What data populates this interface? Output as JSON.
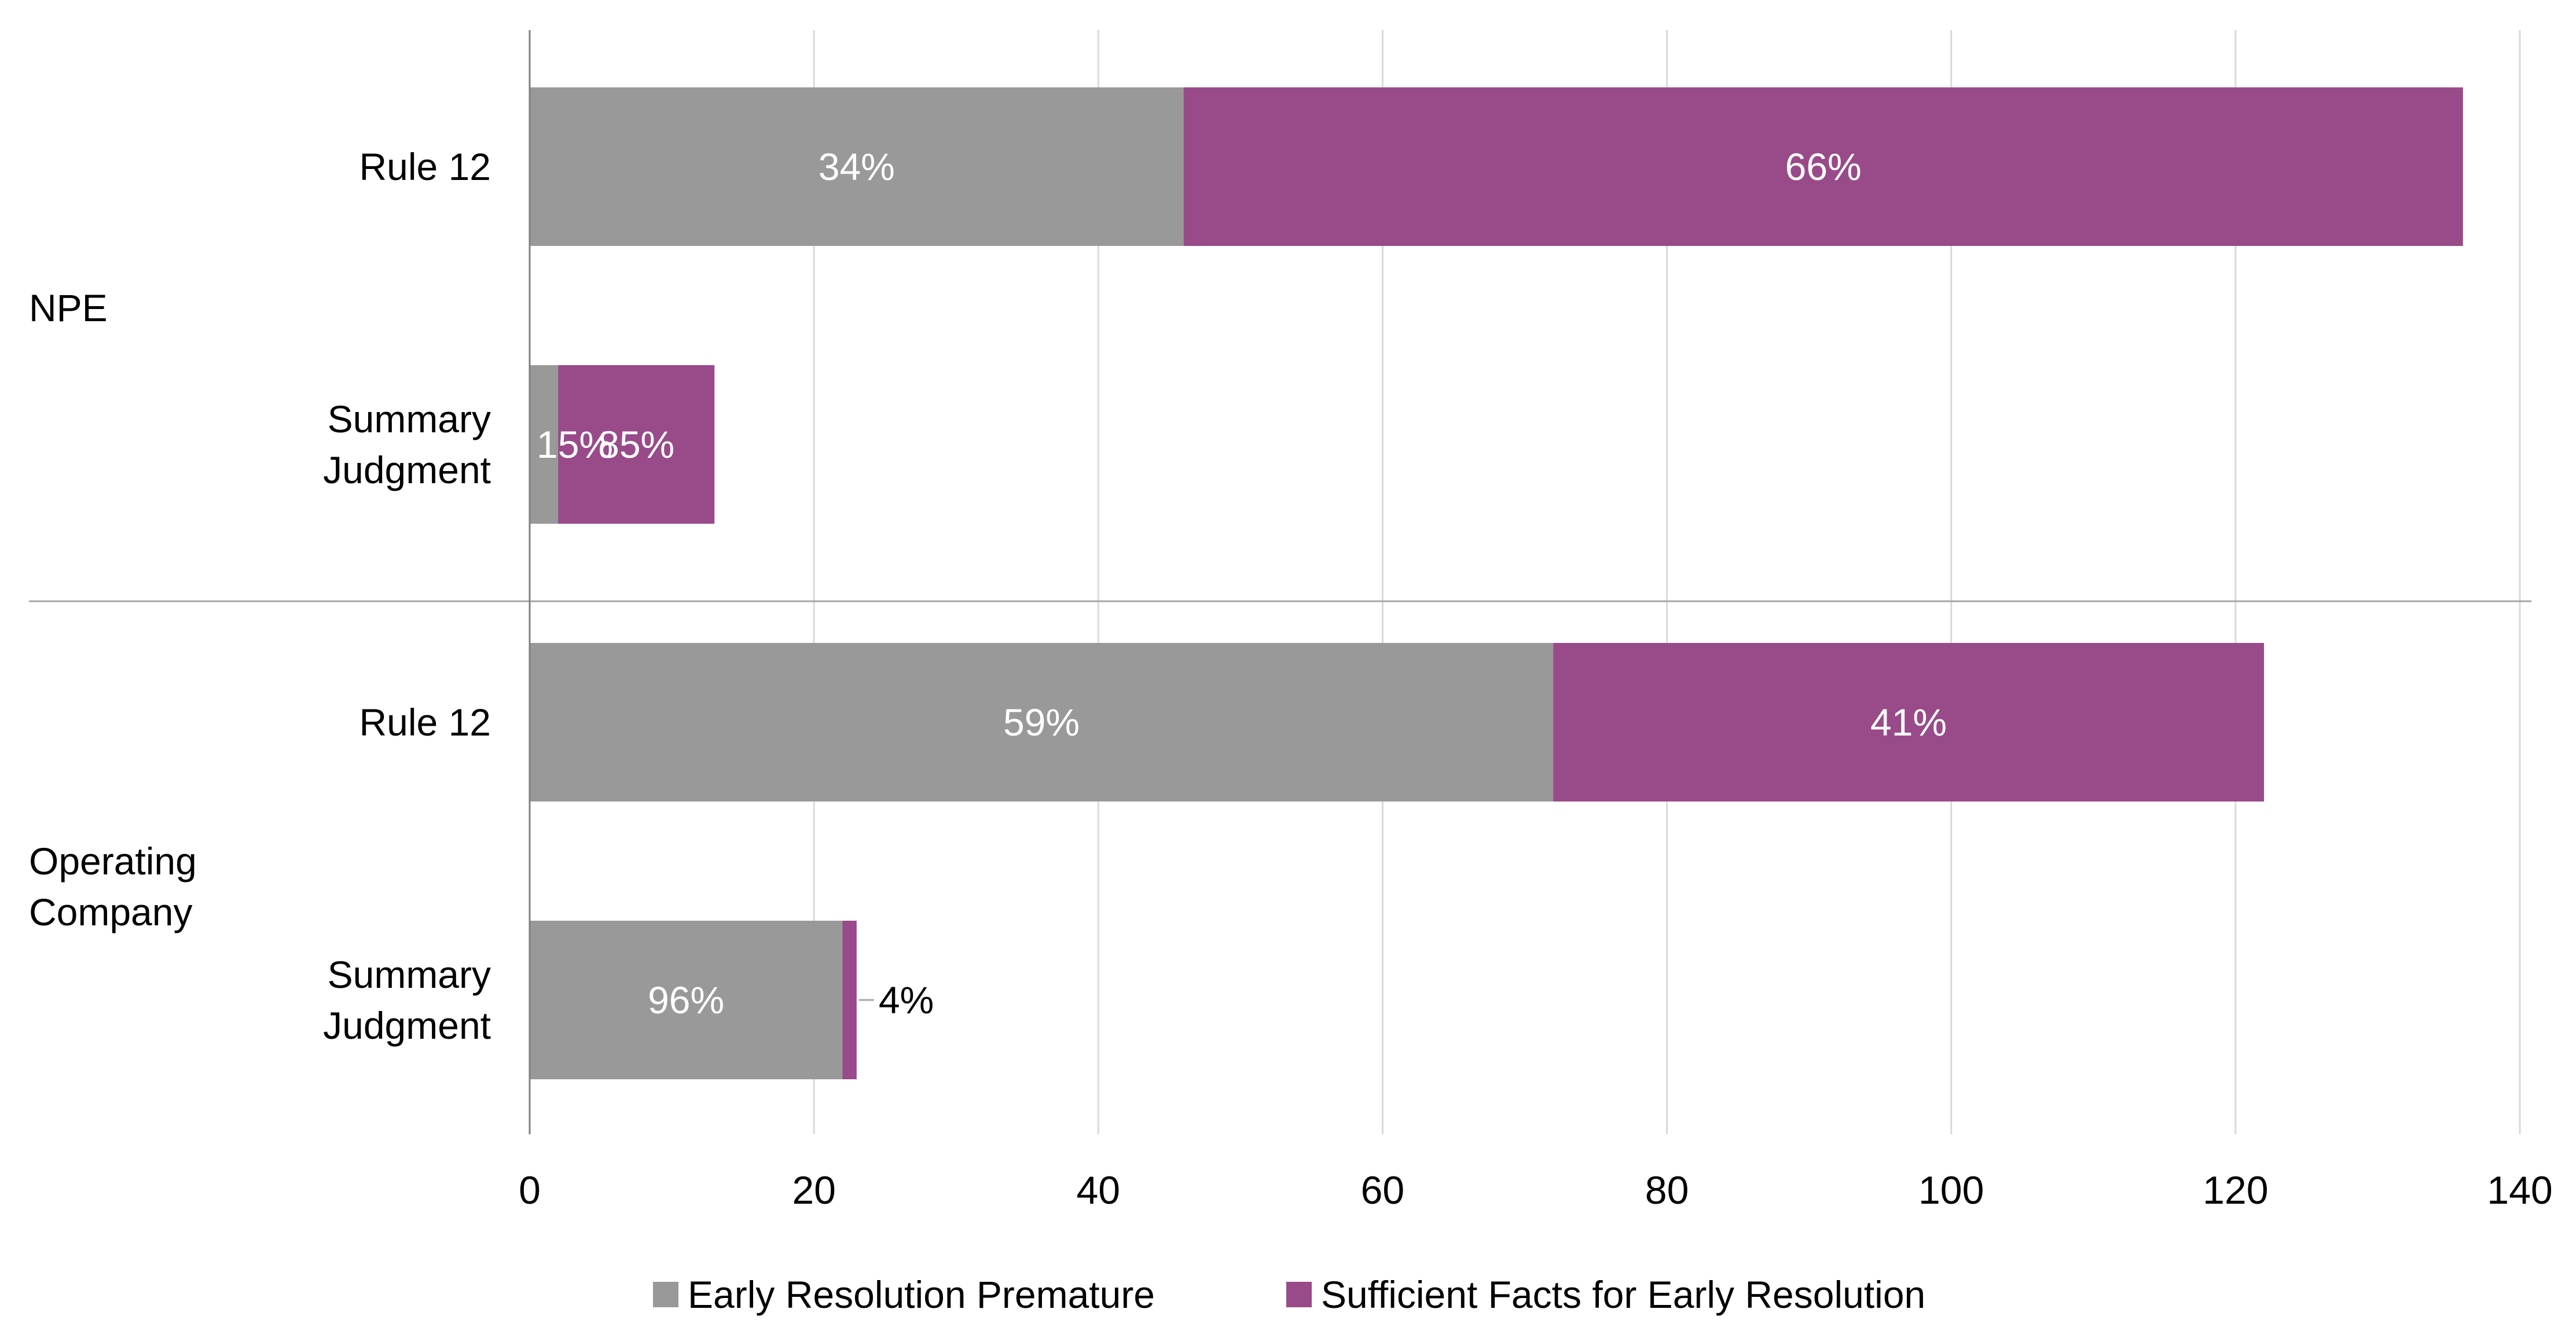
{
  "chart_data": {
    "type": "bar",
    "orientation": "horizontal",
    "stacked": true,
    "groups": [
      "NPE",
      "Operating Company"
    ],
    "categories": [
      "Rule 12",
      "Summary Judgment"
    ],
    "rows": [
      {
        "group": "NPE",
        "category": [
          "Rule 12"
        ],
        "values": [
          46,
          90
        ],
        "labels": [
          "34%",
          "66%"
        ]
      },
      {
        "group": "NPE",
        "category": [
          "Summary",
          "Judgment"
        ],
        "values": [
          2,
          11
        ],
        "labels": [
          "15%",
          "85%"
        ]
      },
      {
        "group": "Operating Company",
        "category": [
          "Rule 12"
        ],
        "values": [
          72,
          50
        ],
        "labels": [
          "59%",
          "41%"
        ]
      },
      {
        "group": "Operating Company",
        "category": [
          "Summary",
          "Judgment"
        ],
        "values": [
          22,
          1
        ],
        "labels": [
          "96%",
          "4%"
        ]
      }
    ],
    "group_labels": [
      [
        "NPE"
      ],
      [
        "Operating",
        "Company"
      ]
    ],
    "series": [
      {
        "name": "Early Resolution Premature",
        "color": "#999999"
      },
      {
        "name": "Sufficient Facts for Early Resolution",
        "color": "#994a89"
      }
    ],
    "xlim": [
      0,
      140
    ],
    "xticks": [
      0,
      20,
      40,
      60,
      80,
      100,
      120,
      140
    ],
    "grid": true,
    "legend": "bottom",
    "title": "",
    "xlabel": "",
    "ylabel": ""
  }
}
